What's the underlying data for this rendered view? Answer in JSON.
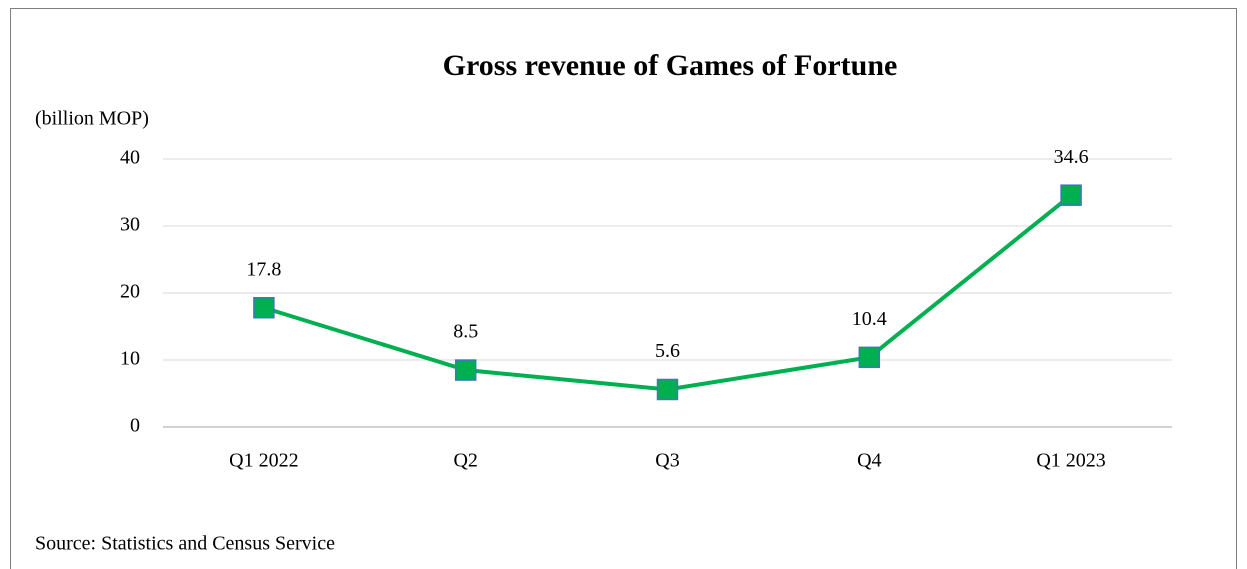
{
  "chart_data": {
    "type": "line",
    "title": "Gross revenue of Games of Fortune",
    "y_label": "(billion MOP)",
    "source": "Source: Statistics and Census Service",
    "categories": [
      "Q1 2022",
      "Q2",
      "Q3",
      "Q4",
      "Q1 2023"
    ],
    "series": [
      {
        "name": "Gross revenue",
        "color": "#00b050",
        "marker_edge": "#4472c4",
        "values": [
          17.8,
          8.5,
          5.6,
          10.4,
          34.6
        ]
      }
    ],
    "ylim": [
      0,
      40
    ],
    "yticks": [
      0,
      10,
      20,
      30,
      40
    ],
    "grid": true
  }
}
